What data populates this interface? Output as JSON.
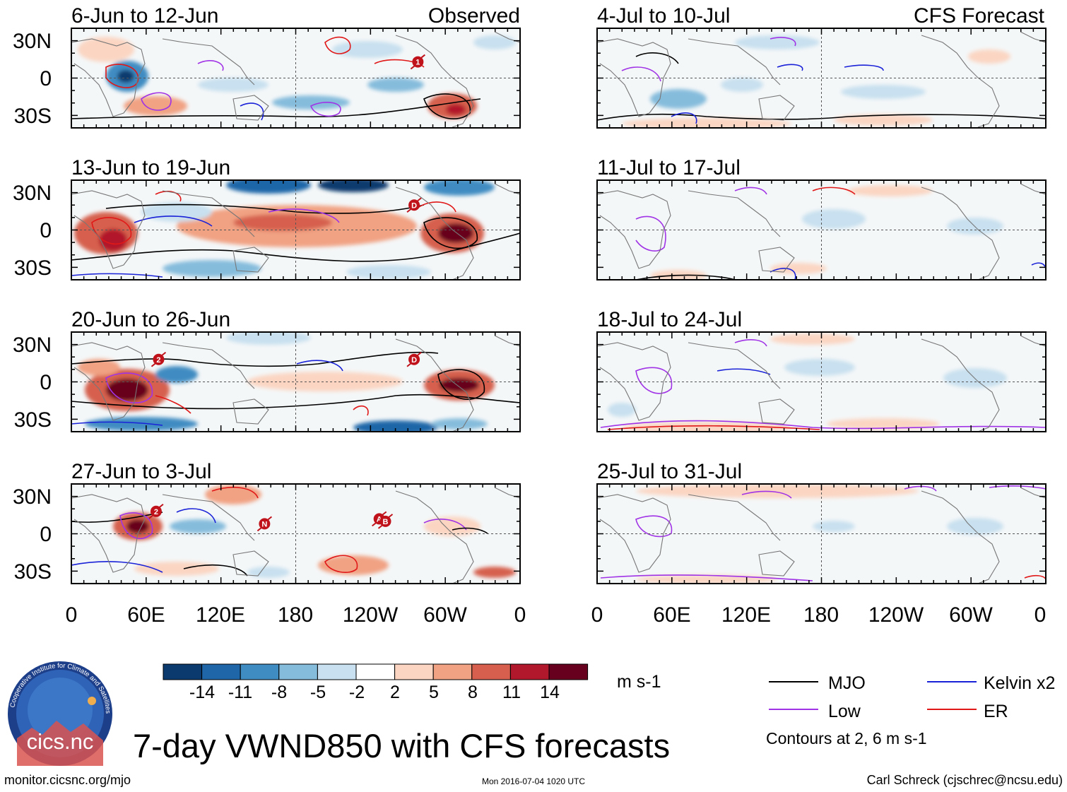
{
  "chart_data": {
    "type": "heatmap",
    "title": "7-day VWND850 with CFS forecasts",
    "variable": "VWND850",
    "units": "m s-1",
    "columns": [
      {
        "header": "Observed",
        "panels": [
          {
            "period": "6-Jun to 12-Jun",
            "storms": [
              {
                "id": "1",
                "lon": 278,
                "lat": 13
              }
            ]
          },
          {
            "period": "13-Jun to 19-Jun",
            "storms": [
              {
                "id": "D",
                "lon": 275,
                "lat": 20
              }
            ]
          },
          {
            "period": "20-Jun to 26-Jun",
            "storms": [
              {
                "id": "2",
                "lon": 70,
                "lat": 18
              },
              {
                "id": "D",
                "lon": 275,
                "lat": 18
              }
            ]
          },
          {
            "period": "27-Jun to 3-Jul",
            "storms": [
              {
                "id": "2",
                "lon": 68,
                "lat": 18
              },
              {
                "id": "N",
                "lon": 155,
                "lat": 8
              },
              {
                "id": "A",
                "lon": 247,
                "lat": 12
              },
              {
                "id": "B",
                "lon": 252,
                "lat": 10
              }
            ]
          }
        ]
      },
      {
        "header": "CFS Forecast",
        "panels": [
          {
            "period": "4-Jul to 10-Jul",
            "storms": []
          },
          {
            "period": "11-Jul to 17-Jul",
            "storms": []
          },
          {
            "period": "18-Jul to 24-Jul",
            "storms": []
          },
          {
            "period": "25-Jul to 31-Jul",
            "storms": []
          }
        ]
      }
    ],
    "y_axis": {
      "ticks": [
        "30N",
        "0",
        "30S"
      ],
      "range": [
        -40,
        40
      ]
    },
    "x_axis": {
      "ticks": [
        "0",
        "60E",
        "120E",
        "180",
        "120W",
        "60W",
        "0"
      ],
      "range": [
        0,
        360
      ]
    },
    "colorbar": {
      "ticks": [
        "-14",
        "-11",
        "-8",
        "-5",
        "-2",
        "2",
        "5",
        "8",
        "11",
        "14"
      ],
      "colors": [
        "#0b3a6e",
        "#1f66a8",
        "#3f8cc2",
        "#85bcdc",
        "#c8e0ef",
        "#ffffff",
        "#fbd5c2",
        "#f1a283",
        "#d6604d",
        "#b2182b",
        "#67001f"
      ],
      "units": "m s-1"
    },
    "legend": [
      {
        "label": "MJO",
        "color": "#000000"
      },
      {
        "label": "Kelvin x2",
        "color": "#1a22d8"
      },
      {
        "label": "Low",
        "color": "#a033e6"
      },
      {
        "label": "ER",
        "color": "#e01818"
      }
    ],
    "contour_note": "Contours at 2, 6 m s-1"
  },
  "footer": {
    "logo_text": "cics.nc",
    "logo_ring_text": "Cooperative Institute for Climate and Satellites",
    "url": "monitor.cicsnc.org/mjo",
    "timestamp": "Mon 2016-07-04 1020 UTC",
    "author": "Carl Schreck (cjschrec@ncsu.edu)"
  },
  "colors": {
    "coast": "#777777",
    "grid": "#555555",
    "bg_neutral": "#f4f7f8"
  }
}
